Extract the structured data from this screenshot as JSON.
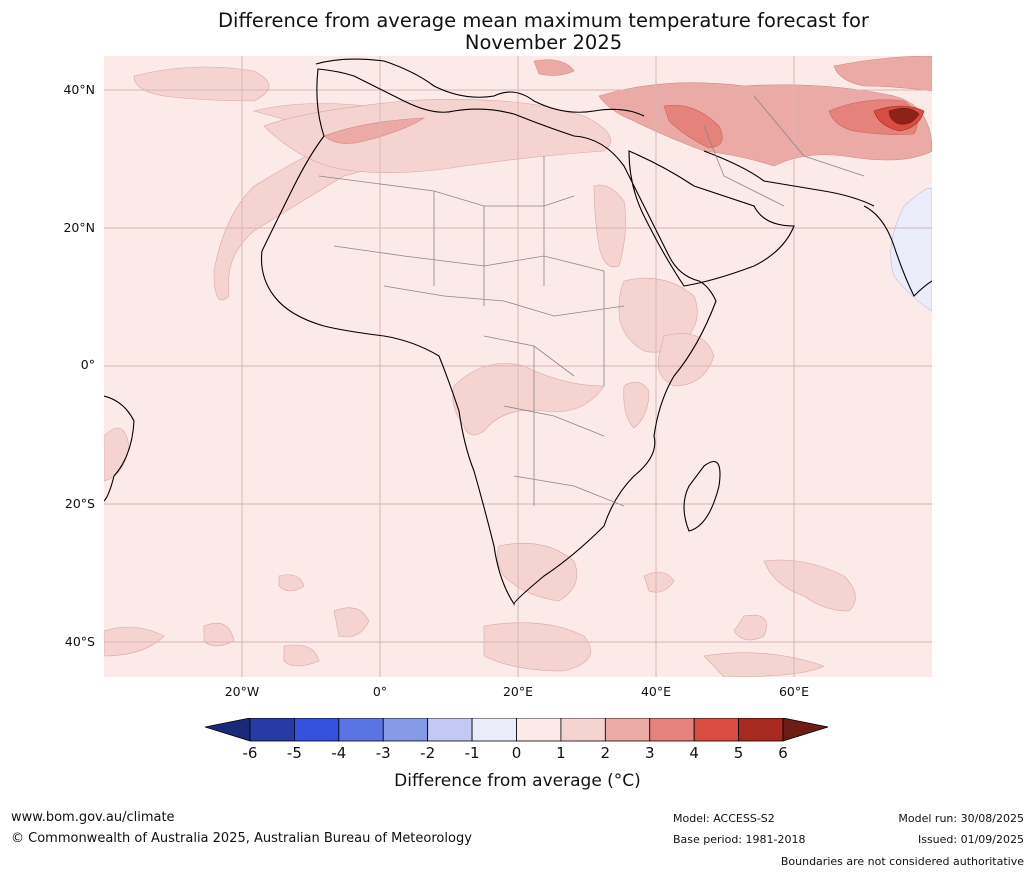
{
  "title": "Difference from average mean maximum temperature forecast for November 2025",
  "title_line1": "Difference from average mean maximum temperature forecast for",
  "title_line2": "November 2025",
  "map": {
    "region": "Africa",
    "lat_labels": [
      "40°N",
      "20°N",
      "0°",
      "20°S",
      "40°S"
    ],
    "lon_labels": [
      "20°W",
      "0°",
      "20°E",
      "40°E",
      "60°E"
    ],
    "background_anomaly_class": "0 to 1",
    "hotspots": [
      {
        "area": "Afghanistan / Pakistan / Tajikistan",
        "class": "5 to 6+"
      },
      {
        "area": "Iran / Iraq",
        "class": "3 to 4"
      },
      {
        "area": "Arabian Peninsula north",
        "class": "2 to 3"
      },
      {
        "area": "Western Sahara / Mauritania",
        "class": "1 to 2"
      },
      {
        "area": "East Africa",
        "class": "1 to 2"
      },
      {
        "area": "Arabian Sea",
        "class": "-1 to 0"
      }
    ]
  },
  "colorbar": {
    "ticks": [
      "-6",
      "-5",
      "-4",
      "-3",
      "-2",
      "-1",
      "0",
      "1",
      "2",
      "3",
      "4",
      "5",
      "6"
    ],
    "colors": [
      "#273aa6",
      "#3452de",
      "#5a74e4",
      "#8699e6",
      "#c2c9f2",
      "#eaecfa",
      "#fbeae8",
      "#f4d3d0",
      "#ecaaa6",
      "#e6827c",
      "#d94c42",
      "#a8291f"
    ],
    "low_extend_color": "#1a2a78",
    "high_extend_color": "#6e1c16",
    "label": "Difference from average ($^\\circ$C)",
    "label_display": "Difference from average (°C)"
  },
  "footer": {
    "url": "www.bom.gov.au/climate",
    "copyright": "© Commonwealth of Australia 2025, Australian Bureau of Meteorology",
    "model": "Model: ACCESS-S2",
    "base_period": "Base period: 1981-2018",
    "model_run": "Model run: 30/08/2025",
    "issued": "Issued: 01/09/2025",
    "disclaimer": "Boundaries are not considered authoritative"
  }
}
